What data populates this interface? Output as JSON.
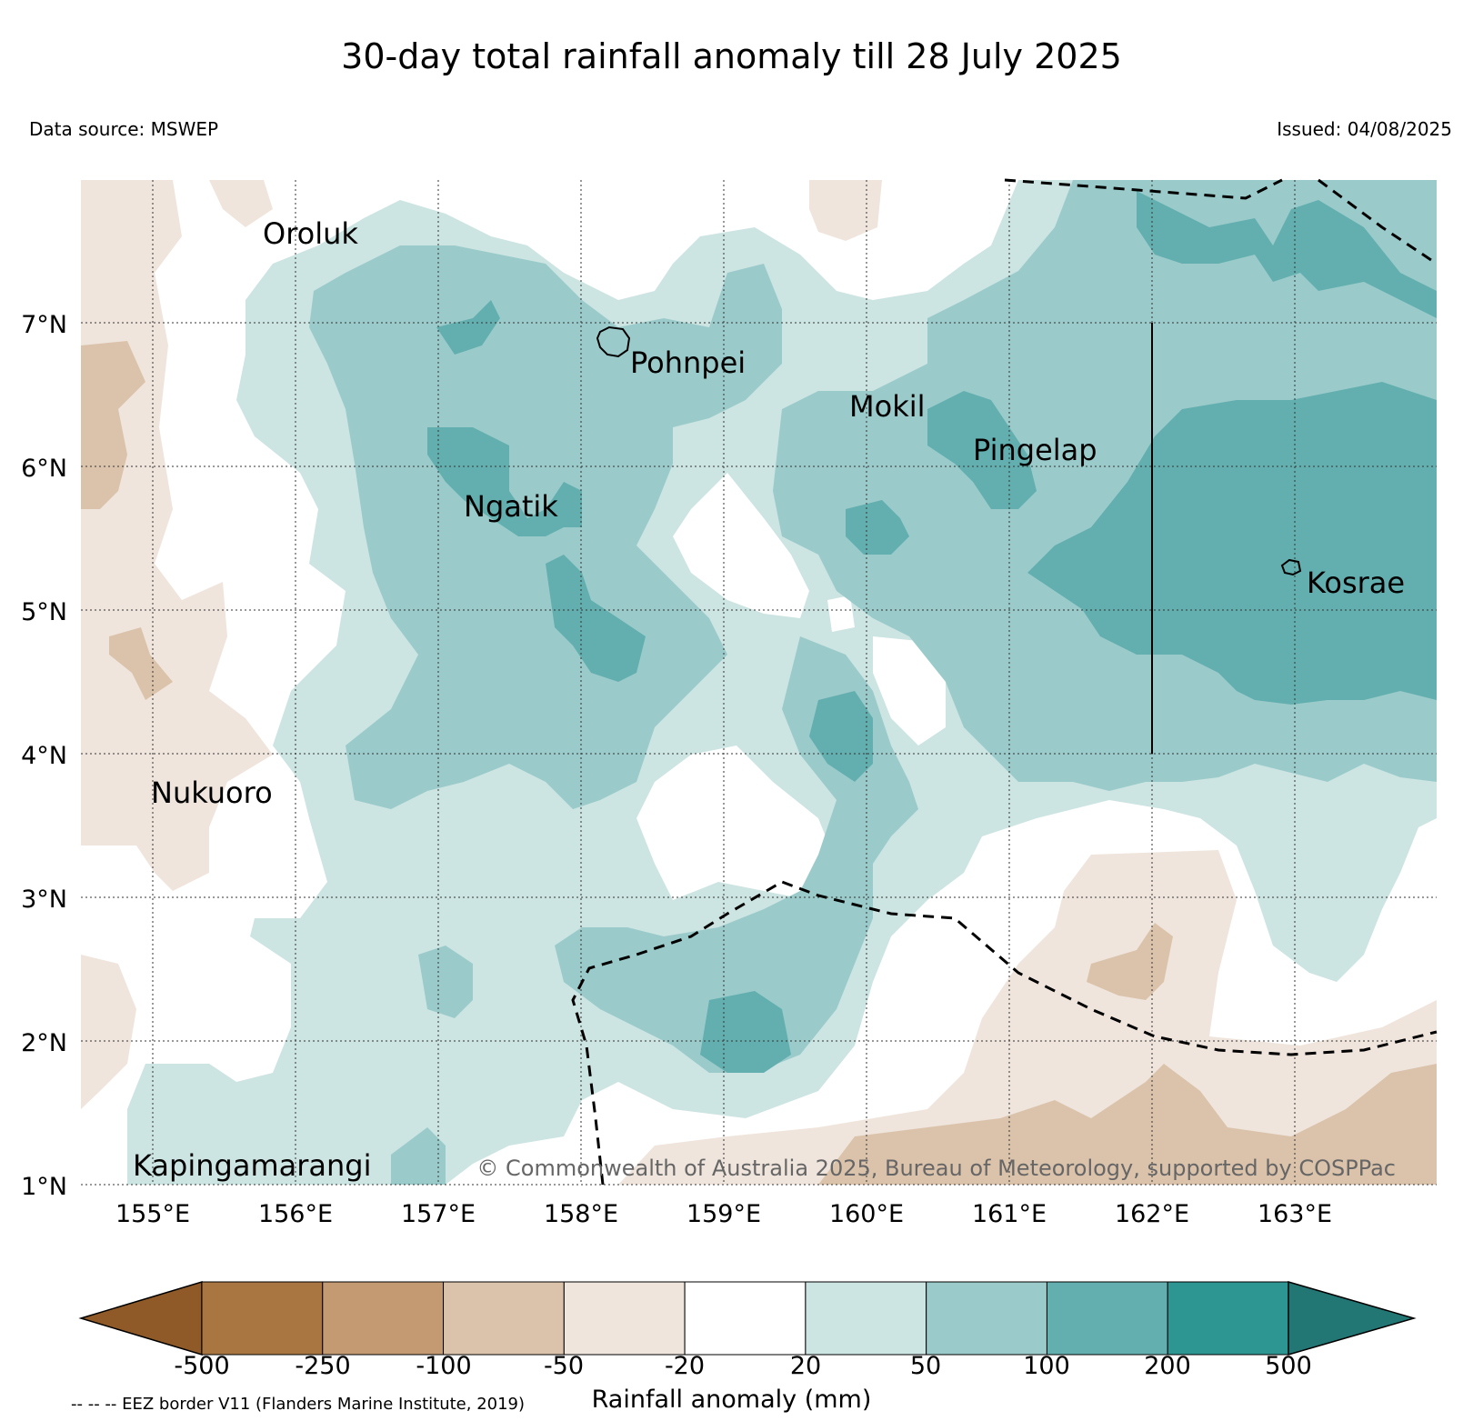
{
  "title": "30-day total rainfall anomaly till 28 July 2025",
  "data_source": "Data source: MSWEP",
  "issued": "Issued: 04/08/2025",
  "copyright": "© Commonwealth of Australia 2025, Bureau of Meteorology, supported by COSPPac",
  "eez_note": "-- -- -- EEZ border V11 (Flanders Marine Institute, 2019)",
  "map": {
    "lon_range": [
      154.5,
      164.0
    ],
    "lat_range": [
      1.0,
      8.0
    ],
    "lon_ticks": [
      "155°E",
      "156°E",
      "157°E",
      "158°E",
      "159°E",
      "160°E",
      "161°E",
      "162°E",
      "163°E"
    ],
    "lat_ticks": [
      "1°N",
      "2°N",
      "3°N",
      "4°N",
      "5°N",
      "6°N",
      "7°N"
    ],
    "places": [
      {
        "name": "Oroluk",
        "lon": 155.8,
        "lat": 7.7
      },
      {
        "name": "Pohnpei",
        "lon": 158.2,
        "lat": 6.85
      },
      {
        "name": "Mokil",
        "lon": 159.8,
        "lat": 6.7
      },
      {
        "name": "Pingelap",
        "lon": 160.7,
        "lat": 6.2
      },
      {
        "name": "Ngatik",
        "lon": 157.1,
        "lat": 5.8
      },
      {
        "name": "Kosrae",
        "lon": 163.0,
        "lat": 5.3
      },
      {
        "name": "Nukuoro",
        "lon": 154.97,
        "lat": 3.85
      },
      {
        "name": "Kapingamarangi",
        "lon": 154.8,
        "lat": 1.08
      }
    ],
    "grid": true,
    "land_color": "#ffffff"
  },
  "colorbar": {
    "label": "Rainfall anomaly (mm)",
    "ticks": [
      "-500",
      "-250",
      "-100",
      "-50",
      "-20",
      "20",
      "50",
      "100",
      "200",
      "500"
    ],
    "colors": [
      "#8f5a28",
      "#a97642",
      "#c39a72",
      "#dbc3ab",
      "#efe5dc",
      "#ffffff",
      "#cce4e2",
      "#9acbca",
      "#63afaf",
      "#2d9592",
      "#227774"
    ]
  }
}
